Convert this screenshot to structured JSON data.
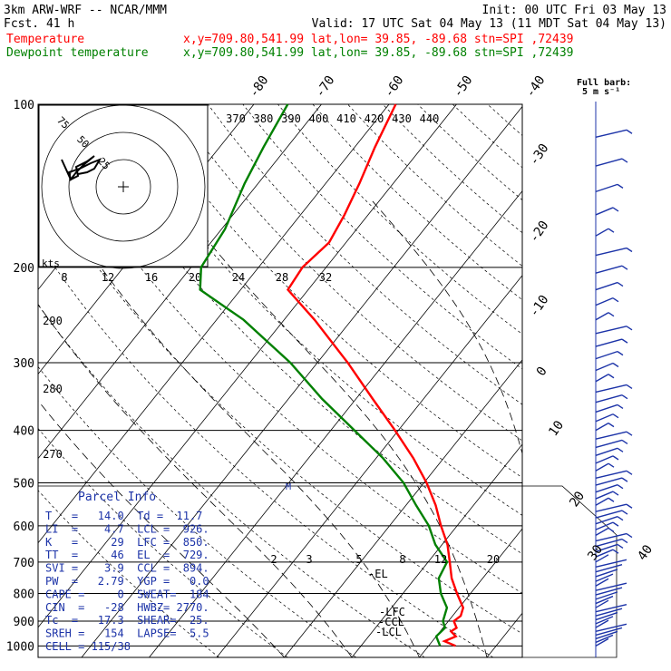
{
  "header": {
    "model": "3km ARW-WRF -- NCAR/MMM",
    "init": "Init: 00 UTC Fri 03 May 13",
    "fcst": "Fcst.   41 h",
    "valid": "Valid: 17 UTC Sat 04 May 13 (11 MDT Sat 04 May 13)",
    "temperature_label": "Temperature",
    "dewpoint_label": "Dewpoint temperature",
    "temperature_info": "x,y=709.80,541.99   lat,lon= 39.85, -89.68  stn=SPI ,72439",
    "dewpoint_info": "x,y=709.80,541.99   lat,lon= 39.85, -89.68  stn=SPI ,72439",
    "temperature_color": "#ff0000",
    "dewpoint_color": "#008000"
  },
  "barb_legend": {
    "title": "Full barb:",
    "units": "5 m s⁻¹"
  },
  "parcel_info": {
    "title": "Parcel Info",
    "rows": [
      "T   =   14.0  Td =  11.7",
      "LI  =    4.7  LCL =  926.",
      "K   =     29  LFC =  850.",
      "TT  =     46  EL  =  729.",
      "SVI =    3.9  CCL =  894.",
      "PW  =   2.79  YGP =   0.0",
      "CAPE =     0  SWEAT=  184",
      "CIN  =   -28  HWBZ= 2770.",
      "Tc  =   17.3  SHEAR=  25.",
      "SREH =   154  LAPSE=  5.5",
      "CELL = 115/38"
    ]
  },
  "chart_data": {
    "type": "line",
    "diagram": "skew-T log-p",
    "y_axis_ticks": [
      100,
      200,
      300,
      400,
      500,
      600,
      700,
      800,
      900,
      1000
    ],
    "isotherm_labels": [
      "-80",
      "-70",
      "-60",
      "-50",
      "-40",
      "-30",
      "-20",
      "-10",
      "0",
      "10",
      "20",
      "30",
      "40"
    ],
    "mixing_ratio_labels": [
      "2",
      "3",
      "5",
      "8",
      "12",
      "20"
    ],
    "theta_e_labels": [
      "370",
      "380",
      "390",
      "400",
      "410",
      "420",
      "430",
      "440"
    ],
    "theta_side_labels": [
      "290",
      "280",
      "270"
    ],
    "level_labels": [
      "-EL",
      "-LFC",
      "-CCL",
      "-LCL"
    ],
    "series": [
      {
        "name": "Temperature",
        "points": [
          [
            1000,
            14.0
          ],
          [
            980,
            11.8
          ],
          [
            960,
            12.9
          ],
          [
            940,
            11.6
          ],
          [
            926,
            12.0
          ],
          [
            900,
            10.8
          ],
          [
            880,
            11.2
          ],
          [
            850,
            10.6
          ],
          [
            800,
            8.0
          ],
          [
            750,
            5.4
          ],
          [
            700,
            3.2
          ],
          [
            650,
            0.8
          ],
          [
            600,
            -2.4
          ],
          [
            550,
            -5.6
          ],
          [
            500,
            -9.6
          ],
          [
            450,
            -14.5
          ],
          [
            400,
            -20.5
          ],
          [
            350,
            -27.5
          ],
          [
            300,
            -35.5
          ],
          [
            250,
            -45.5
          ],
          [
            220,
            -53.0
          ],
          [
            200,
            -53.5
          ],
          [
            180,
            -52.5
          ],
          [
            160,
            -53.5
          ],
          [
            140,
            -55.0
          ],
          [
            120,
            -57.0
          ],
          [
            100,
            -59.0
          ]
        ]
      },
      {
        "name": "Dewpoint temperature",
        "points": [
          [
            1000,
            11.7
          ],
          [
            960,
            10.0
          ],
          [
            926,
            10.3
          ],
          [
            900,
            9.2
          ],
          [
            850,
            8.2
          ],
          [
            800,
            5.6
          ],
          [
            750,
            3.5
          ],
          [
            700,
            2.8
          ],
          [
            650,
            -1.0
          ],
          [
            600,
            -4.2
          ],
          [
            550,
            -8.5
          ],
          [
            500,
            -13.0
          ],
          [
            450,
            -19.0
          ],
          [
            400,
            -26.5
          ],
          [
            350,
            -35.0
          ],
          [
            300,
            -44.0
          ],
          [
            250,
            -56.0
          ],
          [
            220,
            -66.0
          ],
          [
            200,
            -68.5
          ],
          [
            170,
            -69.5
          ],
          [
            140,
            -72.0
          ],
          [
            120,
            -73.5
          ],
          [
            100,
            -75.0
          ]
        ]
      }
    ],
    "hodograph": {
      "units": "kts",
      "ring_labels": [
        "75",
        "50",
        "25"
      ],
      "speed_labels": [
        "8",
        "12",
        "16",
        "20",
        "24",
        "28",
        "32"
      ]
    }
  }
}
